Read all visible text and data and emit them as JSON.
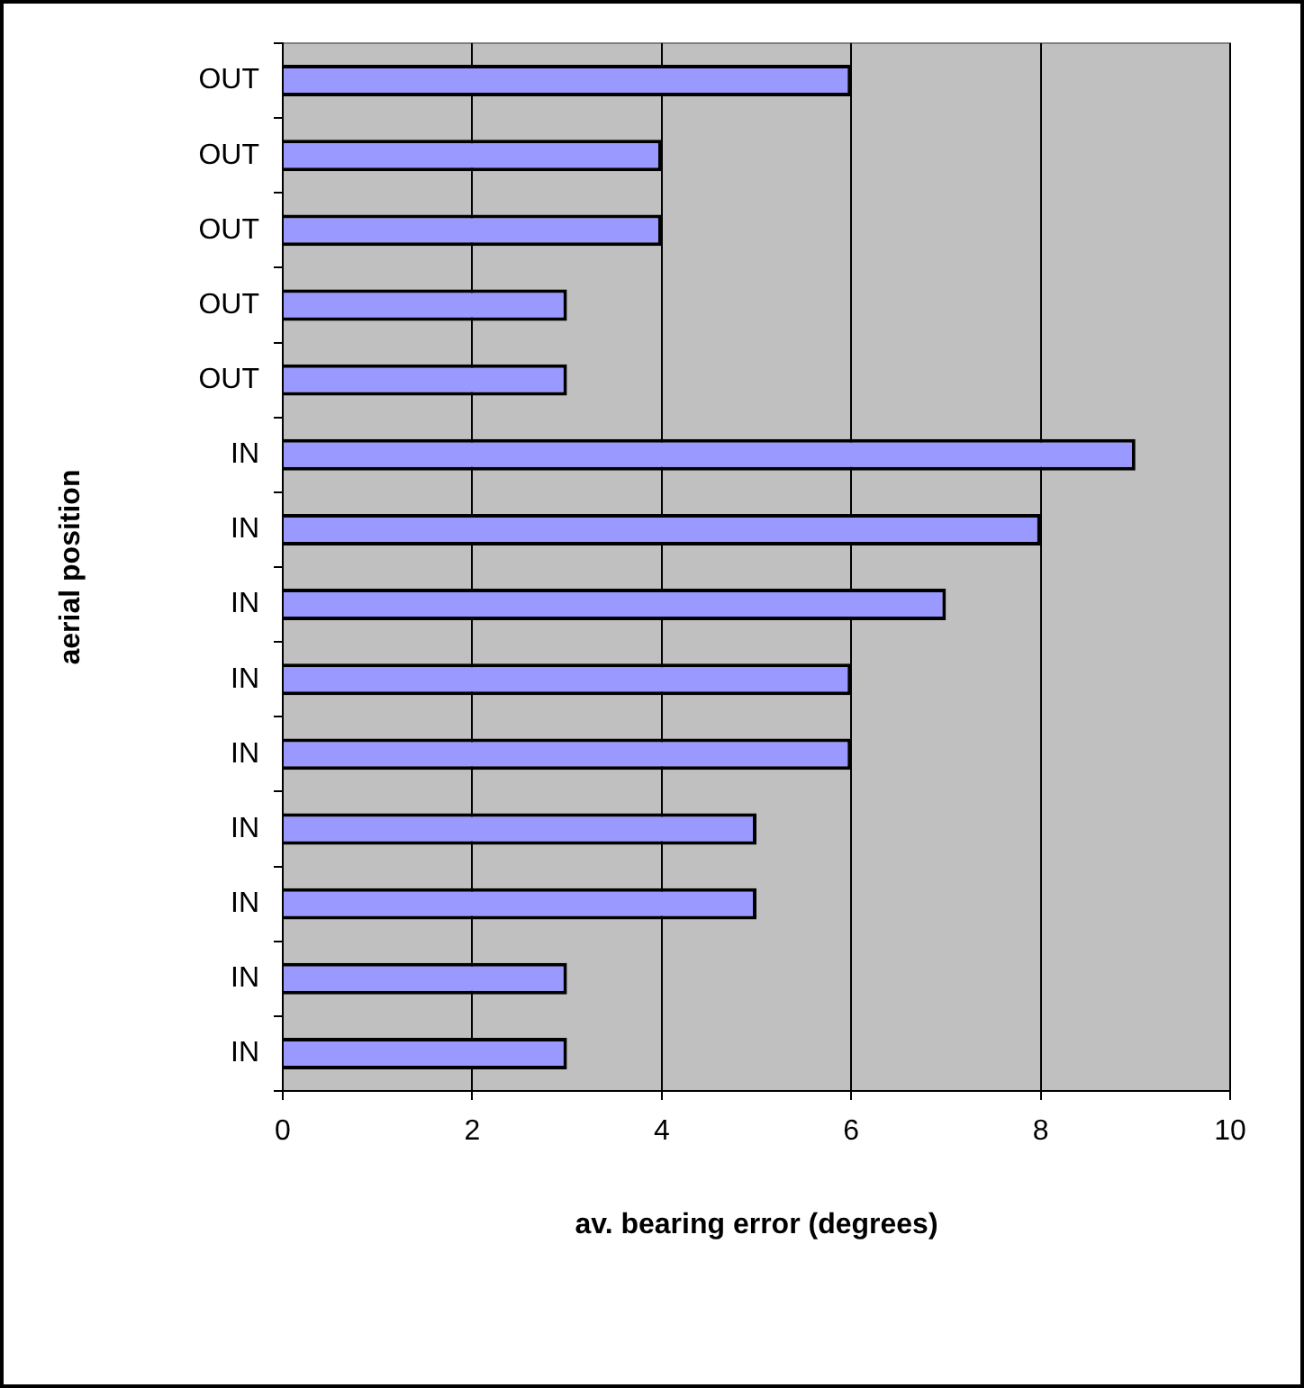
{
  "chart_data": {
    "type": "bar",
    "orientation": "horizontal",
    "xlabel": "av. bearing error (degrees)",
    "ylabel": "aerial position",
    "categories": [
      "OUT",
      "OUT",
      "OUT",
      "OUT",
      "OUT",
      "IN",
      "IN",
      "IN",
      "IN",
      "IN",
      "IN",
      "IN",
      "IN",
      "IN"
    ],
    "values": [
      6,
      4,
      4,
      3,
      3,
      9,
      8,
      7,
      6,
      6,
      5,
      5,
      3,
      3
    ],
    "color": "#9999ff",
    "xlim": [
      0,
      10
    ],
    "xticks": [
      0,
      2,
      4,
      6,
      8,
      10
    ],
    "grid": "x",
    "legend": false
  }
}
